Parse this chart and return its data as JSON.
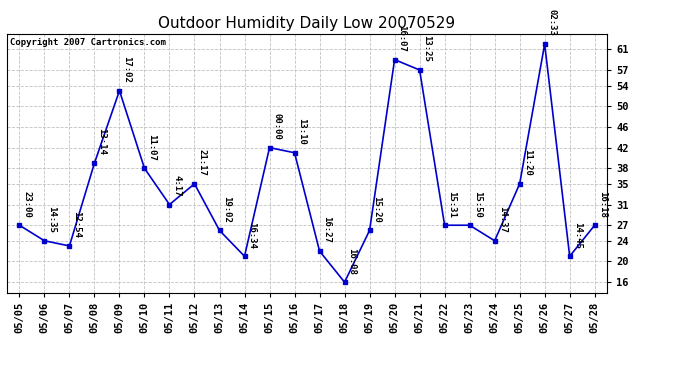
{
  "title": "Outdoor Humidity Daily Low 20070529",
  "copyright": "Copyright 2007 Cartronics.com",
  "line_color": "#0000CC",
  "background_color": "#ffffff",
  "grid_color": "#bbbbbb",
  "dates": [
    "05/05",
    "05/06",
    "05/07",
    "05/08",
    "05/09",
    "05/10",
    "05/11",
    "05/12",
    "05/13",
    "05/14",
    "05/15",
    "05/16",
    "05/17",
    "05/18",
    "05/19",
    "05/20",
    "05/21",
    "05/22",
    "05/23",
    "05/24",
    "05/25",
    "05/26",
    "05/27",
    "05/28"
  ],
  "values": [
    27,
    24,
    23,
    39,
    53,
    38,
    31,
    35,
    26,
    21,
    42,
    41,
    22,
    16,
    26,
    59,
    57,
    27,
    27,
    24,
    35,
    62,
    21,
    27
  ],
  "labels": [
    "23:00",
    "14:35",
    "12:54",
    "13:14",
    "17:02",
    "11:07",
    "4:17",
    "21:17",
    "19:02",
    "16:34",
    "00:00",
    "13:10",
    "16:27",
    "16:08",
    "15:20",
    "16:07",
    "13:25",
    "15:31",
    "15:50",
    "14:37",
    "11:20",
    "02:33",
    "14:45",
    "16:18"
  ],
  "ylim": [
    14,
    64
  ],
  "yticks": [
    16,
    20,
    24,
    27,
    31,
    35,
    38,
    42,
    46,
    50,
    54,
    57,
    61
  ],
  "title_fontsize": 11,
  "label_fontsize": 6.5,
  "tick_fontsize": 7.5,
  "copyright_fontsize": 6.5
}
